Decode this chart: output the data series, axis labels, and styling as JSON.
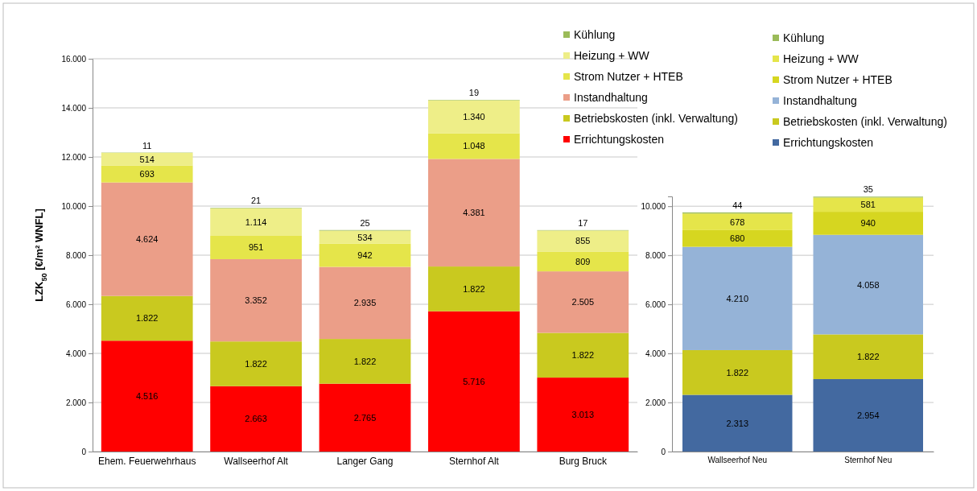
{
  "chart_data": [
    {
      "type": "bar",
      "stacked": true,
      "ylabel": "LZK$_{50}$ [€/m² WNFL]",
      "categories": [
        "Ehem. Feuerwehrhaus",
        "Wallseerhof Alt",
        "Langer Gang",
        "Sternhof Alt",
        "Burg Bruck"
      ],
      "ylim": [
        0,
        16000
      ],
      "yticks": [
        0,
        {
          "value": 2000,
          "label": "2.000"
        },
        {
          "value": 4000,
          "label": "4.000"
        },
        {
          "value": 6000,
          "label": "6.000"
        },
        {
          "value": 8000,
          "label": "8.000"
        },
        {
          "value": 10000,
          "label": "10.000"
        },
        {
          "value": 12000,
          "label": "12.000"
        },
        {
          "value": 14000,
          "label": "14.000"
        },
        {
          "value": 16000,
          "label": "16.000"
        }
      ],
      "grid": "y",
      "legend": "top right",
      "series": [
        {
          "name": "Errichtungskosten",
          "color": "#ff0000",
          "values": [
            4516,
            2663,
            2765,
            5716,
            3013
          ],
          "value_labels": [
            "4.516",
            "2.663",
            "2.765",
            "5.716",
            "3.013"
          ]
        },
        {
          "name": "Betriebskosten (inkl. Verwaltung)",
          "color": "#c9c91f",
          "values": [
            1822,
            1822,
            1822,
            1822,
            1822
          ],
          "value_labels": [
            "1.822",
            "1.822",
            "1.822",
            "1.822",
            "1.822"
          ]
        },
        {
          "name": "Instandhaltung",
          "color": "#eb9e88",
          "values": [
            4624,
            3352,
            2935,
            4381,
            2505
          ],
          "value_labels": [
            "4.624",
            "3.352",
            "2.935",
            "4.381",
            "2.505"
          ]
        },
        {
          "name": "Strom Nutzer + HTEB",
          "color": "#e5e54a",
          "values": [
            693,
            951,
            942,
            1048,
            809
          ],
          "value_labels": [
            "693",
            "951",
            "942",
            "1.048",
            "809"
          ]
        },
        {
          "name": "Heizung + WW",
          "color": "#eeee88",
          "values": [
            514,
            1114,
            534,
            1340,
            855
          ],
          "value_labels": [
            "514",
            "1.114",
            "534",
            "1.340",
            "855"
          ]
        },
        {
          "name": "Kühlung",
          "color": "#9bbb59",
          "values": [
            11,
            21,
            25,
            19,
            17
          ],
          "value_labels": [
            "11",
            "21",
            "25",
            "19",
            "17"
          ]
        }
      ]
    },
    {
      "type": "bar",
      "stacked": true,
      "categories": [
        "Wallseerhof Neu",
        "Sternhof Neu"
      ],
      "ylim": [
        0,
        10400
      ],
      "yticks": [
        0,
        {
          "value": 2000,
          "label": "2.000"
        },
        {
          "value": 4000,
          "label": "4.000"
        },
        {
          "value": 6000,
          "label": "6.000"
        },
        {
          "value": 8000,
          "label": "8.000"
        },
        {
          "value": 10000,
          "label": "10.000"
        }
      ],
      "grid": "y",
      "legend": "top",
      "series": [
        {
          "name": "Errichtungskosten",
          "color": "#4369a0",
          "values": [
            2313,
            2954
          ],
          "value_labels": [
            "2.313",
            "2.954"
          ]
        },
        {
          "name": "Betriebskosten (inkl. Verwaltung)",
          "color": "#c9c91f",
          "values": [
            1822,
            1822
          ],
          "value_labels": [
            "1.822",
            "1.822"
          ]
        },
        {
          "name": "Instandhaltung",
          "color": "#95b3d7",
          "values": [
            4210,
            4058
          ],
          "value_labels": [
            "4.210",
            "4.058"
          ]
        },
        {
          "name": "Strom Nutzer + HTEB",
          "color": "#d6d620",
          "values": [
            680,
            940
          ],
          "value_labels": [
            "680",
            "940"
          ]
        },
        {
          "name": "Heizung + WW",
          "color": "#e5e54a",
          "values": [
            678,
            581
          ],
          "value_labels": [
            "678",
            "581"
          ]
        },
        {
          "name": "Kühlung",
          "color": "#9bbb59",
          "values": [
            44,
            35
          ],
          "value_labels": [
            "44",
            "35"
          ]
        }
      ]
    }
  ]
}
